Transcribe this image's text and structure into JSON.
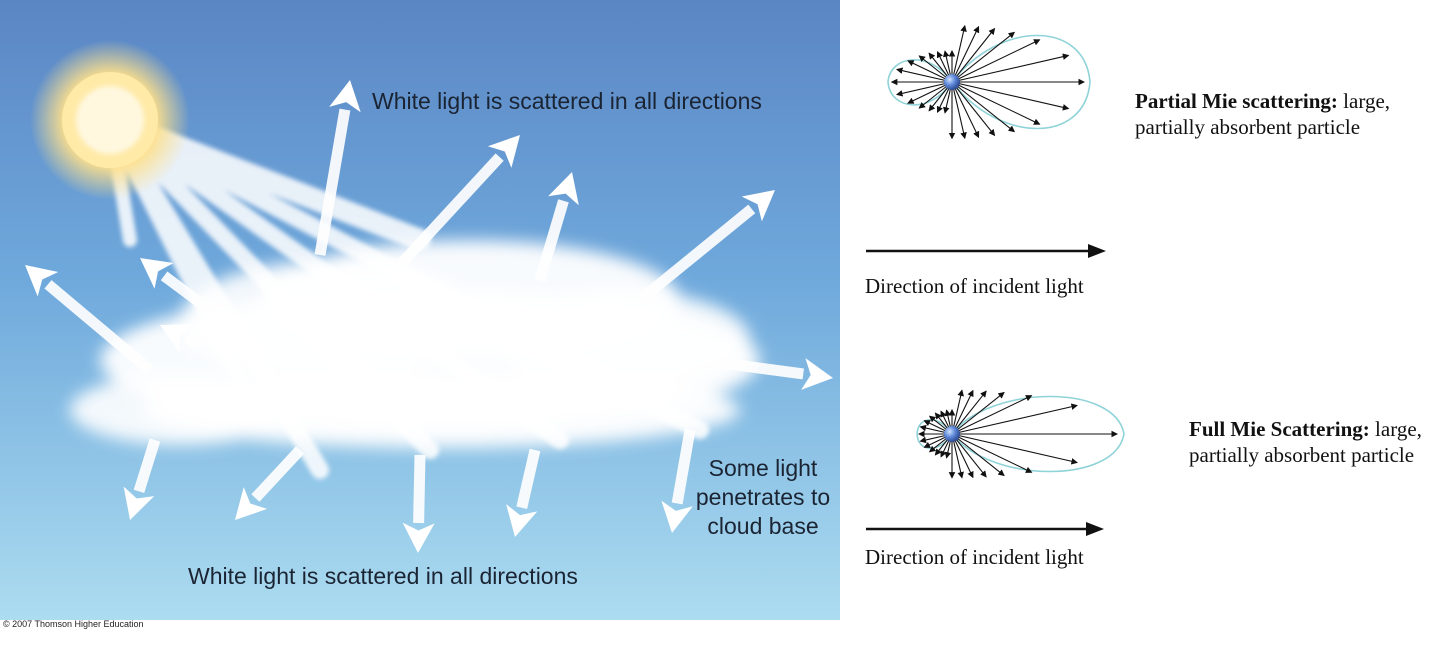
{
  "illustration": {
    "label_top": "White light is scattered in all directions",
    "label_bottom": "White light is scattered in all directions",
    "label_penetrates": "Some light penetrates to cloud base",
    "credit": "© 2007 Thomson Higher Education",
    "colors": {
      "sky_top": "#5f8ec9",
      "sky_bottom": "#a9d8ee",
      "arrow": "#ffffff",
      "sun": "#ffe7a0"
    }
  },
  "partial_mie": {
    "title": "Partial Mie scattering:",
    "description": "large, partially absorbent particle",
    "incident_label": "Direction of incident light"
  },
  "full_mie": {
    "title": "Full Mie Scattering:",
    "description": "large, partially absorbent particle",
    "incident_label": "Direction of incident light"
  }
}
